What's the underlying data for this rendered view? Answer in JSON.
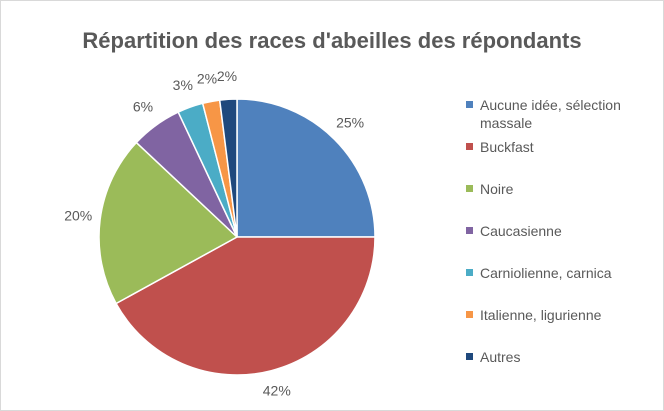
{
  "chart_data": {
    "type": "pie",
    "title": "Répartition des races d'abeilles des répondants",
    "categories": [
      "Aucune idée, sélection massale",
      "Buckfast",
      "Noire",
      "Caucasienne",
      "Carniolienne, carnica",
      "Italienne, ligurienne",
      "Autres"
    ],
    "values": [
      25,
      42,
      20,
      6,
      3,
      2,
      2
    ],
    "value_labels": [
      "25%",
      "42%",
      "20%",
      "6%",
      "3%",
      "2%",
      "2%"
    ],
    "colors": [
      "#4f81bd",
      "#c0504d",
      "#9bbb59",
      "#8064a2",
      "#4bacc6",
      "#f79646",
      "#1f497d"
    ],
    "legend": "right"
  }
}
